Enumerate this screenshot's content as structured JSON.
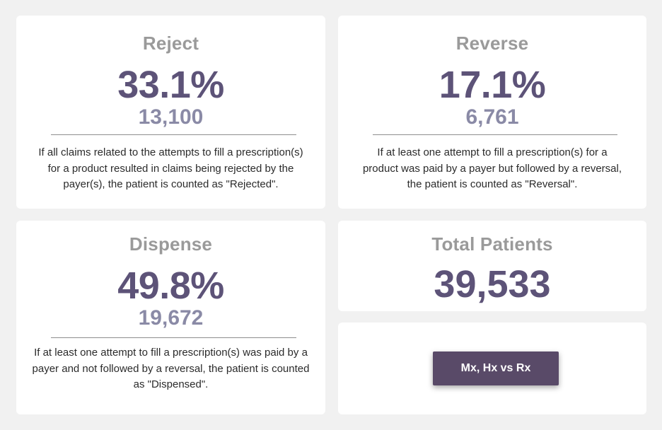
{
  "colors": {
    "background": "#f1f1f1",
    "card": "#ffffff",
    "title": "#9a9a9a",
    "primary_value": "#5d5378",
    "secondary_value": "#8a8aa6",
    "button": "#594a68"
  },
  "reject": {
    "title": "Reject",
    "percent": "33.1%",
    "count": "13,100",
    "description": "If all claims related to the attempts to fill a prescription(s) for a product resulted in claims being rejected by the payer(s), the patient is counted as \"Rejected\"."
  },
  "reverse": {
    "title": "Reverse",
    "percent": "17.1%",
    "count": "6,761",
    "description": "If at least one attempt to fill a prescription(s) for a product was paid by a payer but followed by a reversal, the patient is counted as \"Reversal\"."
  },
  "dispense": {
    "title": "Dispense",
    "percent": "49.8%",
    "count": "19,672",
    "description": "If at least one attempt to fill a prescription(s) was paid by a payer and not followed by a reversal, the patient is counted as \"Dispensed\"."
  },
  "total": {
    "title": "Total Patients",
    "value": "39,533"
  },
  "action": {
    "label": "Mx, Hx vs Rx"
  }
}
